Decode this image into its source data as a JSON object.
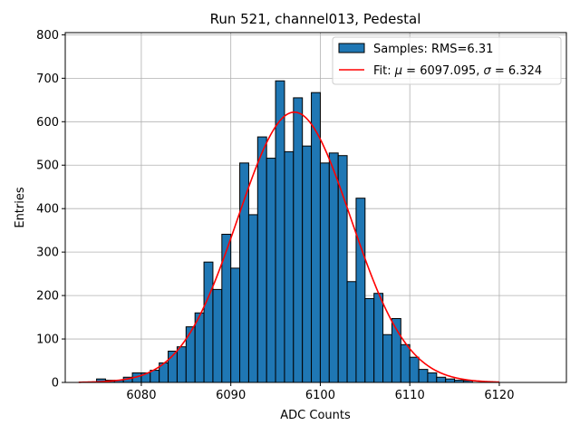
{
  "chart_data": {
    "type": "bar",
    "title": "Run 521, channel013, Pedestal",
    "xlabel": "ADC Counts",
    "ylabel": "Entries",
    "xlim": [
      6071.5,
      6127.5
    ],
    "ylim": [
      0,
      805
    ],
    "xticks": [
      6080,
      6090,
      6100,
      6110,
      6120
    ],
    "yticks": [
      0,
      100,
      200,
      300,
      400,
      500,
      600,
      700,
      800
    ],
    "grid": true,
    "bar_color": "#1f77b4",
    "bar_edge_color": "#000000",
    "fit_color": "#ff0000",
    "bin_width": 1,
    "histogram": {
      "bin_start": 6073,
      "counts": [
        0,
        0,
        8,
        5,
        5,
        12,
        22,
        22,
        28,
        45,
        72,
        82,
        128,
        160,
        277,
        214,
        341,
        263,
        505,
        386,
        565,
        516,
        694,
        531,
        655,
        544,
        667,
        505,
        528,
        522,
        232,
        424,
        193,
        205,
        110,
        147,
        87,
        58,
        30,
        22,
        12,
        8,
        5,
        4,
        0,
        0,
        0,
        0,
        0,
        0,
        0,
        0
      ]
    },
    "fit": {
      "mu": 6097.095,
      "sigma": 6.324,
      "amplitude": 622,
      "x_range": [
        6073,
        6120
      ]
    },
    "legend": {
      "placement": "top-right",
      "entries": [
        {
          "label": "Samples: RMS=6.31"
        },
        {
          "label_prefix": "Fit: ",
          "mu_symbol": "μ",
          "mu_text": " = 6097.095, ",
          "sigma_symbol": "σ",
          "sigma_text": " = 6.324"
        }
      ]
    }
  }
}
